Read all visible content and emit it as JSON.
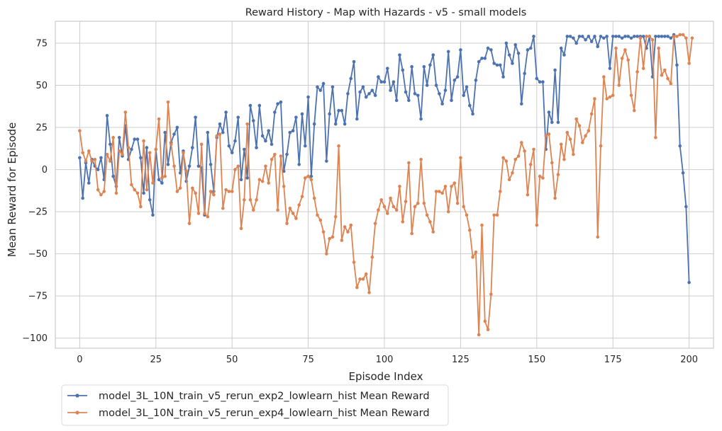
{
  "chart_data": {
    "type": "line",
    "title": "Reward History - Map with Hazards - v5 - small models",
    "xlabel": "Episode Index",
    "ylabel": "Mean Reward for Episode",
    "xlim": [
      -8,
      208
    ],
    "ylim": [
      -106,
      88
    ],
    "xticks": [
      0,
      25,
      50,
      75,
      100,
      125,
      150,
      175,
      200
    ],
    "yticks": [
      -100,
      -75,
      -50,
      -25,
      0,
      25,
      50,
      75
    ],
    "grid": true,
    "legend_position": "below-left",
    "series": [
      {
        "name": "model_3L_10N_train_v5_rerun_exp2_lowlearn_hist Mean Reward",
        "color": "#4c72b0",
        "values": [
          7,
          -17,
          4,
          -8,
          6,
          2,
          0,
          7,
          -6,
          32,
          15,
          -4,
          -10,
          19,
          8,
          26,
          6,
          12,
          18,
          18,
          7,
          -14,
          13,
          -18,
          -27,
          12,
          -6,
          -8,
          22,
          3,
          16,
          21,
          25,
          -2,
          11,
          -7,
          2,
          13,
          31,
          2,
          1,
          -27,
          22,
          3,
          -13,
          19,
          27,
          22,
          34,
          14,
          10,
          17,
          31,
          -6,
          12,
          -5,
          38,
          29,
          13,
          38,
          20,
          17,
          23,
          15,
          34,
          39,
          40,
          -1,
          9,
          22,
          23,
          31,
          3,
          33,
          14,
          43,
          -4,
          27,
          49,
          47,
          51,
          5,
          33,
          49,
          27,
          35,
          35,
          27,
          45,
          54,
          64,
          30,
          46,
          49,
          43,
          45,
          47,
          44,
          55,
          52,
          52,
          60,
          47,
          52,
          41,
          68,
          59,
          46,
          41,
          61,
          45,
          44,
          30,
          61,
          50,
          62,
          68,
          50,
          45,
          39,
          47,
          70,
          41,
          53,
          55,
          71,
          44,
          49,
          38,
          33,
          53,
          64,
          66,
          66,
          72,
          71,
          63,
          62,
          62,
          55,
          75,
          68,
          63,
          74,
          69,
          39,
          57,
          71,
          72,
          79,
          54,
          52,
          52,
          12,
          34,
          28,
          59,
          28,
          72,
          68,
          79,
          79,
          78,
          75,
          79,
          79,
          77,
          79,
          76,
          79,
          73,
          79,
          78,
          79,
          60,
          79,
          79,
          79,
          78,
          79,
          79,
          78,
          79,
          79,
          79,
          79,
          72,
          79,
          55,
          79,
          79,
          79,
          79,
          79,
          78,
          80,
          62,
          14,
          -2,
          -22,
          -67
        ]
      },
      {
        "name": "model_3L_10N_train_v5_rerun_exp4_lowlearn_hist Mean Reward",
        "color": "#dd8452",
        "values": [
          23,
          10,
          5,
          11,
          5,
          6,
          -12,
          -15,
          -13,
          9,
          5,
          19,
          -14,
          11,
          9,
          34,
          13,
          -9,
          -12,
          -14,
          -22,
          17,
          -12,
          10,
          -8,
          12,
          30,
          -5,
          -4,
          40,
          15,
          2,
          -13,
          -11,
          10,
          -1,
          -32,
          -11,
          -14,
          -26,
          15,
          -26,
          -28,
          -13,
          -15,
          20,
          21,
          -23,
          -12,
          -13,
          -13,
          0,
          2,
          -35,
          -18,
          27,
          -18,
          -24,
          -18,
          -6,
          -7,
          2,
          -8,
          6,
          9,
          -24,
          8,
          -10,
          -32,
          -23,
          -26,
          -29,
          -21,
          -16,
          -5,
          -4,
          -6,
          -17,
          -27,
          -30,
          -37,
          -50,
          -41,
          -40,
          -28,
          14,
          -42,
          -34,
          -37,
          -33,
          -55,
          -70,
          -65,
          -65,
          -62,
          -73,
          -52,
          -32,
          -24,
          -18,
          -22,
          -26,
          -17,
          -22,
          -24,
          -10,
          -31,
          -19,
          4,
          -38,
          -22,
          -20,
          6,
          -20,
          -27,
          -31,
          -37,
          -13,
          -13,
          -14,
          -10,
          -25,
          -10,
          -8,
          -20,
          7,
          -22,
          -27,
          -36,
          -52,
          -49,
          -98,
          -33,
          -90,
          -95,
          -74,
          -27,
          -27,
          -13,
          7,
          5,
          -6,
          -2,
          6,
          8,
          16,
          11,
          -15,
          3,
          12,
          -33,
          -4,
          -5,
          20,
          21,
          4,
          -17,
          -3,
          15,
          6,
          22,
          18,
          9,
          30,
          26,
          16,
          20,
          23,
          33,
          42,
          -40,
          14,
          55,
          42,
          43,
          44,
          72,
          50,
          66,
          71,
          65,
          44,
          35,
          58,
          78,
          60,
          79,
          79,
          77,
          19,
          72,
          56,
          59,
          54,
          51,
          79,
          79,
          80,
          80,
          78,
          63,
          78
        ]
      }
    ]
  }
}
